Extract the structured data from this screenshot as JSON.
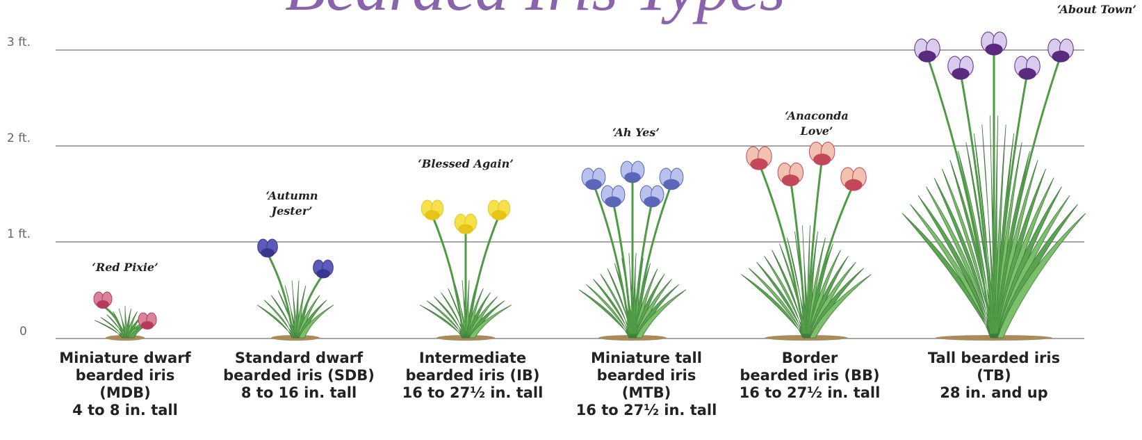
{
  "title": "Bearded Iris Types",
  "axis_labels": [
    "3 ft.",
    "2 ft.",
    "1 ft.",
    "0"
  ],
  "types": [
    {
      "cultivar": [
        "‘Red Pixie’"
      ],
      "name": [
        "Miniature dwarf",
        "bearded iris",
        "(MDB)",
        "4 to 8 in. tall"
      ]
    },
    {
      "cultivar": [
        "‘Autumn",
        "Jester’"
      ],
      "name": [
        "Standard dwarf",
        "bearded iris (SDB)",
        "8 to 16 in. tall"
      ]
    },
    {
      "cultivar": [
        "‘Blessed Again’"
      ],
      "name": [
        "Intermediate",
        "bearded iris (IB)",
        "16 to 27½ in. tall"
      ]
    },
    {
      "cultivar": [
        "‘Ah Yes’"
      ],
      "name": [
        "Miniature tall",
        "bearded iris",
        "(MTB)",
        "16 to 27½ in. tall"
      ]
    },
    {
      "cultivar": [
        "‘Anaconda",
        "Love’"
      ],
      "name": [
        "Border",
        "bearded iris (BB)",
        "16 to 27½ in. tall"
      ]
    },
    {
      "cultivar": [
        "‘About Town’"
      ],
      "name": [
        "Tall bearded iris",
        "(TB)",
        "28 in. and up"
      ]
    }
  ]
}
